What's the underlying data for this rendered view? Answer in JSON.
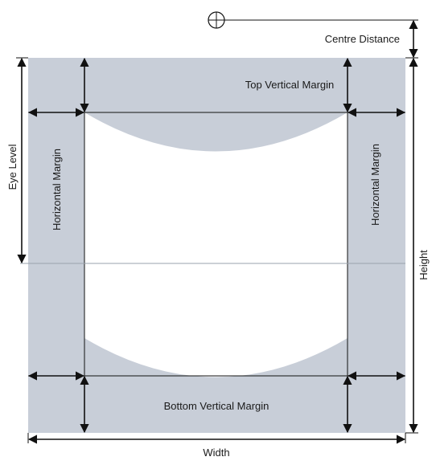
{
  "colors": {
    "margin_fill": "#c8ced8",
    "window_fill": "#ffffff",
    "arrow": "#111111",
    "guide_line": "#9aa3ad"
  },
  "labels": {
    "centre_distance": "Centre Distance",
    "top_vertical_margin": "Top Vertical Margin",
    "bottom_vertical_margin": "Bottom Vertical Margin",
    "horizontal_margin_left": "Horizontal Margin",
    "horizontal_margin_right": "Horizontal Margin",
    "eye_level": "Eye Level",
    "height": "Height",
    "width": "Width"
  },
  "icons": {
    "centre_marker": "crosshair-circle-icon"
  }
}
